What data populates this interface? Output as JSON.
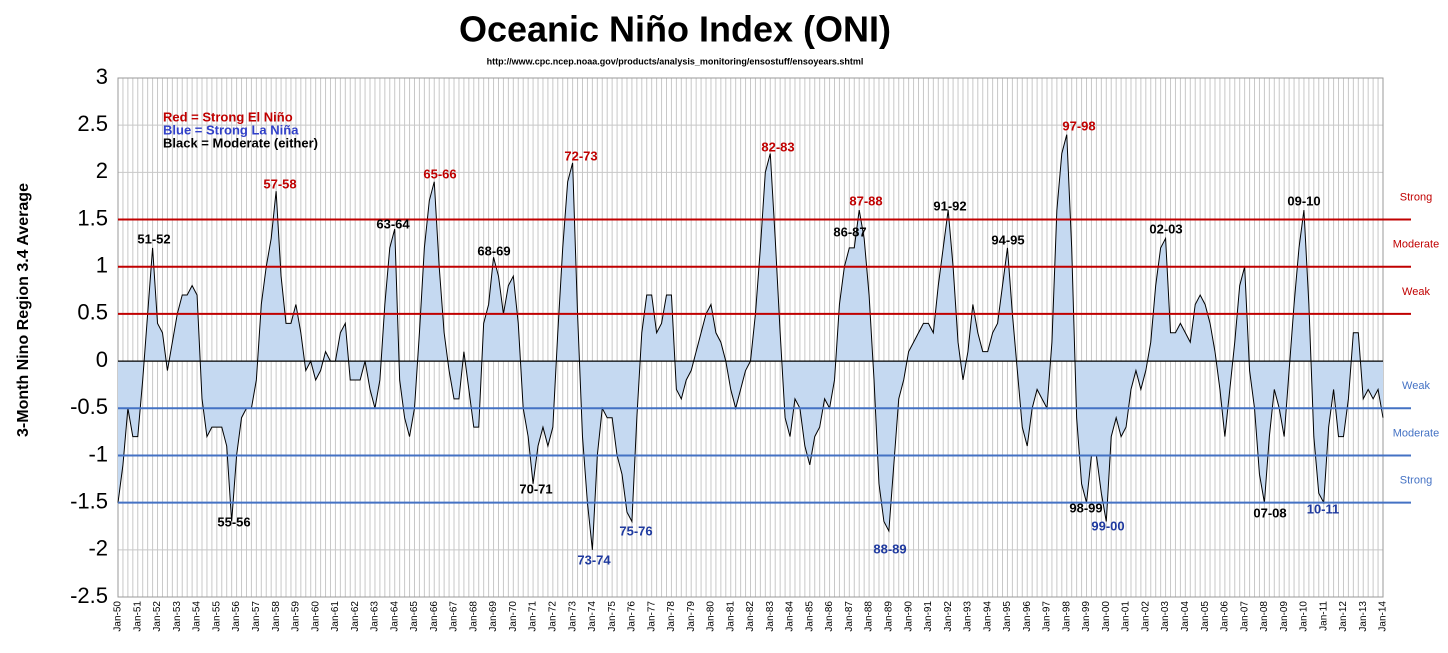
{
  "chart_data": {
    "type": "area",
    "title": "Oceanic Niño Index (ONI)",
    "subtitle": "http://www.cpc.ncep.noaa.gov/products/analysis_monitoring/ensostuff/ensoyears.shtml",
    "y_label": "3-Month Nino Region 3.4 Average",
    "legend_notes": [
      {
        "text": "Red = Strong El Niño",
        "color": "#c00000"
      },
      {
        "text": "Blue = Strong La Niña",
        "color": "#3040c8"
      },
      {
        "text": "Black = Moderate (either)",
        "color": "#000000"
      }
    ],
    "ylim": [
      -2.5,
      3
    ],
    "yticks": [
      -2.5,
      -2,
      -1.5,
      -1,
      -0.5,
      0,
      0.5,
      1,
      1.5,
      2,
      2.5,
      3
    ],
    "grid": true,
    "fill_color": "#c5d9f1",
    "line_color": "#000000",
    "reference_lines": [
      {
        "value": 1.5,
        "label": "Strong",
        "color": "#c00000"
      },
      {
        "value": 1,
        "label": "Moderate",
        "color": "#c00000"
      },
      {
        "value": 0.5,
        "label": "Weak",
        "color": "#c00000"
      },
      {
        "value": -0.5,
        "label": "Weak",
        "color": "#4472c4"
      },
      {
        "value": -1,
        "label": "Moderate",
        "color": "#4472c4"
      },
      {
        "value": -1.5,
        "label": "Strong",
        "color": "#4472c4"
      }
    ],
    "annotations": [
      {
        "text": "51-52",
        "color": "#000000"
      },
      {
        "text": "55-56",
        "color": "#000000"
      },
      {
        "text": "57-58",
        "color": "#c00000"
      },
      {
        "text": "63-64",
        "color": "#000000"
      },
      {
        "text": "65-66",
        "color": "#c00000"
      },
      {
        "text": "68-69",
        "color": "#000000"
      },
      {
        "text": "70-71",
        "color": "#000000"
      },
      {
        "text": "72-73",
        "color": "#c00000"
      },
      {
        "text": "73-74",
        "color": "#1f3a9f"
      },
      {
        "text": "75-76",
        "color": "#1f3a9f"
      },
      {
        "text": "82-83",
        "color": "#c00000"
      },
      {
        "text": "86-87",
        "color": "#000000"
      },
      {
        "text": "87-88",
        "color": "#c00000"
      },
      {
        "text": "88-89",
        "color": "#1f3a9f"
      },
      {
        "text": "91-92",
        "color": "#000000"
      },
      {
        "text": "94-95",
        "color": "#000000"
      },
      {
        "text": "97-98",
        "color": "#c00000"
      },
      {
        "text": "98-99",
        "color": "#000000"
      },
      {
        "text": "99-00",
        "color": "#1f3a9f"
      },
      {
        "text": "02-03",
        "color": "#000000"
      },
      {
        "text": "07-08",
        "color": "#000000"
      },
      {
        "text": "09-10",
        "color": "#000000"
      },
      {
        "text": "10-11",
        "color": "#1f3a9f"
      }
    ],
    "categories": [
      "Jan-50",
      null,
      null,
      null,
      "Jan-51",
      null,
      null,
      null,
      "Jan-52",
      null,
      null,
      null,
      "Jan-53",
      null,
      null,
      null,
      "Jan-54",
      null,
      null,
      null,
      "Jan-55",
      null,
      null,
      null,
      "Jan-56",
      null,
      null,
      null,
      "Jan-57",
      null,
      null,
      null,
      "Jan-58",
      null,
      null,
      null,
      "Jan-59",
      null,
      null,
      null,
      "Jan-60",
      null,
      null,
      null,
      "Jan-61",
      null,
      null,
      null,
      "Jan-62",
      null,
      null,
      null,
      "Jan-63",
      null,
      null,
      null,
      "Jan-64",
      null,
      null,
      null,
      "Jan-65",
      null,
      null,
      null,
      "Jan-66",
      null,
      null,
      null,
      "Jan-67",
      null,
      null,
      null,
      "Jan-68",
      null,
      null,
      null,
      "Jan-69",
      null,
      null,
      null,
      "Jan-70",
      null,
      null,
      null,
      "Jan-71",
      null,
      null,
      null,
      "Jan-72",
      null,
      null,
      null,
      "Jan-73",
      null,
      null,
      null,
      "Jan-74",
      null,
      null,
      null,
      "Jan-75",
      null,
      null,
      null,
      "Jan-76",
      null,
      null,
      null,
      "Jan-77",
      null,
      null,
      null,
      "Jan-78",
      null,
      null,
      null,
      "Jan-79",
      null,
      null,
      null,
      "Jan-80",
      null,
      null,
      null,
      "Jan-81",
      null,
      null,
      null,
      "Jan-82",
      null,
      null,
      null,
      "Jan-83",
      null,
      null,
      null,
      "Jan-84",
      null,
      null,
      null,
      "Jan-85",
      null,
      null,
      null,
      "Jan-86",
      null,
      null,
      null,
      "Jan-87",
      null,
      null,
      null,
      "Jan-88",
      null,
      null,
      null,
      "Jan-89",
      null,
      null,
      null,
      "Jan-90",
      null,
      null,
      null,
      "Jan-91",
      null,
      null,
      null,
      "Jan-92",
      null,
      null,
      null,
      "Jan-93",
      null,
      null,
      null,
      "Jan-94",
      null,
      null,
      null,
      "Jan-95",
      null,
      null,
      null,
      "Jan-96",
      null,
      null,
      null,
      "Jan-97",
      null,
      null,
      null,
      "Jan-98",
      null,
      null,
      null,
      "Jan-99",
      null,
      null,
      null,
      "Jan-00",
      null,
      null,
      null,
      "Jan-01",
      null,
      null,
      null,
      "Jan-02",
      null,
      null,
      null,
      "Jan-03",
      null,
      null,
      null,
      "Jan-04",
      null,
      null,
      null,
      "Jan-05",
      null,
      null,
      null,
      "Jan-06",
      null,
      null,
      null,
      "Jan-07",
      null,
      null,
      null,
      "Jan-08",
      null,
      null,
      null,
      "Jan-09",
      null,
      null,
      null,
      "Jan-10",
      null,
      null,
      null,
      "Jan-11",
      null,
      null,
      null,
      "Jan-12",
      null,
      null,
      null,
      "Jan-13",
      null,
      null,
      null,
      "Jan-14"
    ],
    "values": [
      -1.5,
      -1.1,
      -0.5,
      -0.8,
      -0.8,
      -0.2,
      0.5,
      1.2,
      0.4,
      0.3,
      -0.1,
      0.2,
      0.5,
      0.7,
      0.7,
      0.8,
      0.7,
      -0.4,
      -0.8,
      -0.7,
      -0.7,
      -0.7,
      -0.9,
      -1.7,
      -1.0,
      -0.6,
      -0.5,
      -0.5,
      -0.2,
      0.6,
      1.0,
      1.3,
      1.8,
      0.9,
      0.4,
      0.4,
      0.6,
      0.3,
      -0.1,
      0.0,
      -0.2,
      -0.1,
      0.1,
      0.0,
      0.0,
      0.3,
      0.4,
      -0.2,
      -0.2,
      -0.2,
      0.0,
      -0.3,
      -0.5,
      -0.2,
      0.6,
      1.2,
      1.4,
      -0.2,
      -0.6,
      -0.8,
      -0.5,
      0.3,
      1.2,
      1.7,
      1.9,
      1.0,
      0.3,
      -0.1,
      -0.4,
      -0.4,
      0.1,
      -0.3,
      -0.7,
      -0.7,
      0.4,
      0.6,
      1.1,
      0.9,
      0.5,
      0.8,
      0.9,
      0.4,
      -0.5,
      -0.8,
      -1.3,
      -0.9,
      -0.7,
      -0.9,
      -0.7,
      0.3,
      1.2,
      1.9,
      2.1,
      0.5,
      -0.8,
      -1.5,
      -2.0,
      -1.0,
      -0.5,
      -0.6,
      -0.6,
      -1.0,
      -1.2,
      -1.6,
      -1.7,
      -0.6,
      0.3,
      0.7,
      0.7,
      0.3,
      0.4,
      0.7,
      0.7,
      -0.3,
      -0.4,
      -0.2,
      -0.1,
      0.1,
      0.3,
      0.5,
      0.6,
      0.3,
      0.2,
      0.0,
      -0.3,
      -0.5,
      -0.3,
      -0.1,
      0.0,
      0.5,
      1.2,
      2.0,
      2.2,
      1.3,
      0.3,
      -0.6,
      -0.8,
      -0.4,
      -0.5,
      -0.9,
      -1.1,
      -0.8,
      -0.7,
      -0.4,
      -0.5,
      -0.2,
      0.6,
      1.0,
      1.2,
      1.2,
      1.6,
      1.3,
      0.7,
      -0.2,
      -1.3,
      -1.7,
      -1.8,
      -1.1,
      -0.4,
      -0.2,
      0.1,
      0.2,
      0.3,
      0.4,
      0.4,
      0.3,
      0.8,
      1.2,
      1.6,
      1.0,
      0.2,
      -0.2,
      0.1,
      0.6,
      0.3,
      0.1,
      0.1,
      0.3,
      0.4,
      0.8,
      1.2,
      0.5,
      -0.1,
      -0.7,
      -0.9,
      -0.5,
      -0.3,
      -0.4,
      -0.5,
      0.2,
      1.6,
      2.2,
      2.4,
      1.2,
      -0.6,
      -1.3,
      -1.5,
      -1.0,
      -1.0,
      -1.4,
      -1.7,
      -0.8,
      -0.6,
      -0.8,
      -0.7,
      -0.3,
      -0.1,
      -0.3,
      -0.1,
      0.2,
      0.8,
      1.2,
      1.3,
      0.3,
      0.3,
      0.4,
      0.3,
      0.2,
      0.6,
      0.7,
      0.6,
      0.4,
      0.1,
      -0.3,
      -0.8,
      -0.3,
      0.2,
      0.8,
      1.0,
      -0.1,
      -0.5,
      -1.2,
      -1.5,
      -0.8,
      -0.3,
      -0.5,
      -0.8,
      -0.1,
      0.6,
      1.2,
      1.6,
      0.6,
      -0.8,
      -1.4,
      -1.5,
      -0.7,
      -0.3,
      -0.8,
      -0.8,
      -0.4,
      0.3,
      0.3,
      -0.4,
      -0.3,
      -0.4,
      -0.3,
      -0.6
    ]
  }
}
